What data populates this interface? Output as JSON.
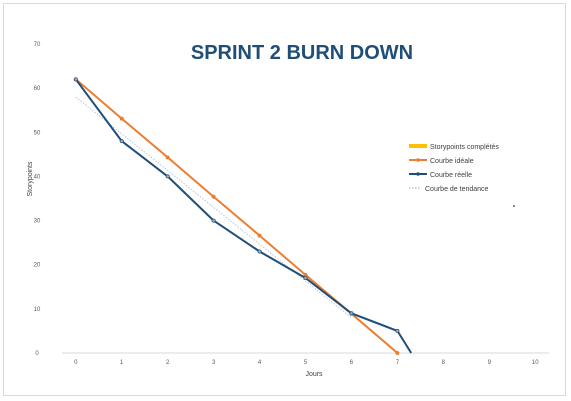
{
  "chart_data": {
    "type": "line",
    "title": "SPRINT 2 BURN DOWN",
    "xlabel": "Jours",
    "ylabel": "Storypoints",
    "xlim": [
      -0.3,
      10.3
    ],
    "ylim": [
      0,
      70
    ],
    "x_ticks": [
      0,
      1,
      2,
      3,
      4,
      5,
      6,
      7,
      8,
      9,
      10
    ],
    "y_ticks": [
      0,
      10,
      20,
      30,
      40,
      50,
      60,
      70
    ],
    "grid": false,
    "legend_position": "right",
    "series": [
      {
        "name": "Storypoints complétés",
        "kind": "bar",
        "color": "#ffc000",
        "x": [],
        "values": []
      },
      {
        "name": "Courbe idéale",
        "kind": "line",
        "color": "#ed7d31",
        "marker": true,
        "x": [
          0,
          1,
          2,
          3,
          4,
          5,
          6,
          7
        ],
        "values": [
          62,
          53.1,
          44.3,
          35.4,
          26.6,
          17.7,
          8.9,
          0
        ]
      },
      {
        "name": "Courbe réelle",
        "kind": "line",
        "color": "#1f4e79",
        "marker": true,
        "x": [
          0,
          1,
          2,
          3,
          4,
          5,
          6,
          7,
          7.3
        ],
        "values": [
          62,
          48,
          40,
          30,
          23,
          17,
          9,
          5,
          0
        ]
      },
      {
        "name": "Courbe de tendance",
        "kind": "trend",
        "color": "#b4c7e7",
        "dashed": true,
        "x": [
          0,
          6
        ],
        "values": [
          58,
          8
        ]
      }
    ]
  }
}
